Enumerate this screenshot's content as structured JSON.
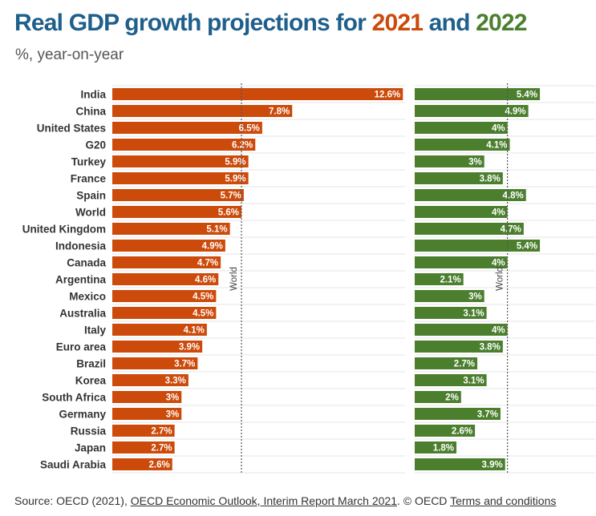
{
  "header": {
    "title_prefix": "Real GDP growth projections for ",
    "year_2021": "2021",
    "title_and": " and ",
    "year_2022": "2022",
    "subtitle": "%, year-on-year"
  },
  "colors": {
    "bar_2021": "#cc4a0a",
    "bar_2022": "#4b7f2e",
    "title": "#1f5f8b"
  },
  "chart_data": {
    "type": "bar",
    "orientation": "horizontal",
    "categories": [
      "India",
      "China",
      "United States",
      "G20",
      "Turkey",
      "France",
      "Spain",
      "World",
      "United Kingdom",
      "Indonesia",
      "Canada",
      "Argentina",
      "Mexico",
      "Australia",
      "Italy",
      "Euro area",
      "Brazil",
      "Korea",
      "South Africa",
      "Germany",
      "Russia",
      "Japan",
      "Saudi Arabia"
    ],
    "series": [
      {
        "name": "2021",
        "values": [
          12.6,
          7.8,
          6.5,
          6.2,
          5.9,
          5.9,
          5.7,
          5.6,
          5.1,
          4.9,
          4.7,
          4.6,
          4.5,
          4.5,
          4.1,
          3.9,
          3.7,
          3.3,
          3,
          3,
          2.7,
          2.7,
          2.6
        ],
        "labels": [
          "12.6%",
          "7.8%",
          "6.5%",
          "6.2%",
          "5.9%",
          "5.9%",
          "5.7%",
          "5.6%",
          "5.1%",
          "4.9%",
          "4.7%",
          "4.6%",
          "4.5%",
          "4.5%",
          "4.1%",
          "3.9%",
          "3.7%",
          "3.3%",
          "3%",
          "3%",
          "2.7%",
          "2.7%",
          "2.6%"
        ]
      },
      {
        "name": "2022",
        "values": [
          5.4,
          4.9,
          4,
          4.1,
          3,
          3.8,
          4.8,
          4,
          4.7,
          5.4,
          4,
          2.1,
          3,
          3.1,
          4,
          3.8,
          2.7,
          3.1,
          2,
          3.7,
          2.6,
          1.8,
          3.9
        ],
        "labels": [
          "5.4%",
          "4.9%",
          "4%",
          "4.1%",
          "3%",
          "3.8%",
          "4.8%",
          "4%",
          "4.7%",
          "5.4%",
          "4%",
          "2.1%",
          "3%",
          "3.1%",
          "4%",
          "3.8%",
          "2.7%",
          "3.1%",
          "2%",
          "3.7%",
          "2.6%",
          "1.8%",
          "3.9%"
        ]
      }
    ],
    "reference_lines": [
      {
        "series": "2021",
        "label": "World",
        "value": 5.6
      },
      {
        "series": "2022",
        "label": "World",
        "value": 4
      }
    ],
    "grid": true,
    "legend": "title"
  },
  "footer": {
    "source_prefix": "Source: OECD (2021), ",
    "source_link": "OECD Economic Outlook, Interim Report March 2021",
    "source_mid": ". © OECD ",
    "terms_link": "Terms and conditions"
  }
}
